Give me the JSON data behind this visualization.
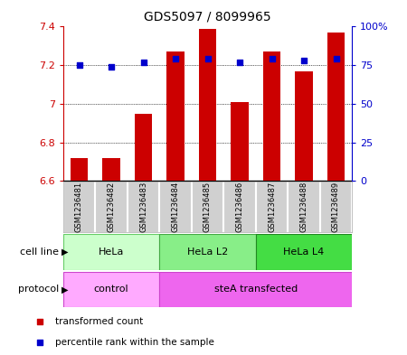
{
  "title": "GDS5097 / 8099965",
  "samples": [
    "GSM1236481",
    "GSM1236482",
    "GSM1236483",
    "GSM1236484",
    "GSM1236485",
    "GSM1236486",
    "GSM1236487",
    "GSM1236488",
    "GSM1236489"
  ],
  "bar_values": [
    6.72,
    6.72,
    6.95,
    7.27,
    7.39,
    7.01,
    7.27,
    7.17,
    7.37
  ],
  "dot_values": [
    75,
    74,
    77,
    79,
    79,
    77,
    79,
    78,
    79
  ],
  "bar_bottom": 6.6,
  "ylim_left": [
    6.6,
    7.4
  ],
  "ylim_right": [
    0,
    100
  ],
  "yticks_left": [
    6.6,
    6.8,
    7.0,
    7.2,
    7.4
  ],
  "ytick_labels_left": [
    "6.6",
    "6.8",
    "7",
    "7.2",
    "7.4"
  ],
  "yticks_right": [
    0,
    25,
    50,
    75,
    100
  ],
  "ytick_labels_right": [
    "0",
    "25",
    "50",
    "75",
    "100%"
  ],
  "grid_values": [
    6.8,
    7.0,
    7.2
  ],
  "bar_color": "#CC0000",
  "dot_color": "#0000CC",
  "cell_line_groups": [
    {
      "label": "HeLa",
      "start": 0,
      "end": 3,
      "color": "#ccffcc",
      "edge": "#66cc66"
    },
    {
      "label": "HeLa L2",
      "start": 3,
      "end": 6,
      "color": "#88ee88",
      "edge": "#44aa44"
    },
    {
      "label": "HeLa L4",
      "start": 6,
      "end": 9,
      "color": "#44dd44",
      "edge": "#228822"
    }
  ],
  "protocol_groups": [
    {
      "label": "control",
      "start": 0,
      "end": 3,
      "color": "#ffaaff",
      "edge": "#cc44cc"
    },
    {
      "label": "steA transfected",
      "start": 3,
      "end": 9,
      "color": "#ee66ee",
      "edge": "#cc44cc"
    }
  ],
  "legend_items": [
    {
      "color": "#CC0000",
      "label": "transformed count"
    },
    {
      "color": "#0000CC",
      "label": "percentile rank within the sample"
    }
  ],
  "bar_width": 0.55,
  "tick_color_left": "#CC0000",
  "tick_color_right": "#0000CC",
  "sample_box_color": "#d0d0d0",
  "sample_box_edge": "#aaaaaa"
}
